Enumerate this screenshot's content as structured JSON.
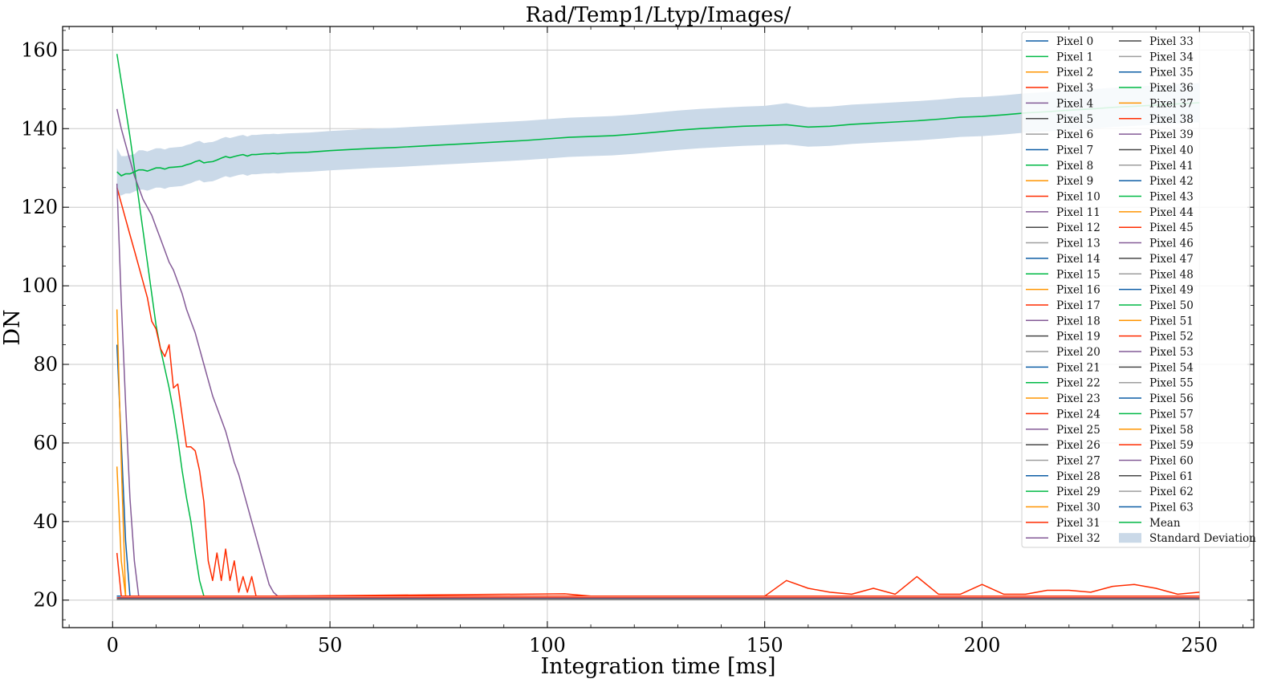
{
  "chart_data": {
    "type": "line",
    "title": "Rad/Temp1/Ltyp/Images/",
    "xlabel": "Integration time [ms]",
    "ylabel": "DN",
    "xlim": [
      -11.5,
      262.5
    ],
    "ylim": [
      13,
      166
    ],
    "xticks": [
      0,
      50,
      100,
      150,
      200,
      250
    ],
    "xtick_labels": [
      "0",
      "50",
      "100",
      "150",
      "200",
      "250"
    ],
    "yticks": [
      20,
      40,
      60,
      80,
      100,
      120,
      140,
      160
    ],
    "ytick_labels": [
      "20",
      "40",
      "60",
      "80",
      "100",
      "120",
      "140",
      "160"
    ],
    "grid": true,
    "legend_position": "top-right",
    "colors": {
      "palette": [
        "#0C5DA5",
        "#00B945",
        "#FF9500",
        "#FF2C00",
        "#845B97",
        "#474747",
        "#9E9E9E"
      ],
      "std_fill": "#CAD9E8",
      "mean": "#00B945"
    },
    "x": [
      1,
      2,
      3,
      4,
      5,
      6,
      7,
      8,
      9,
      10,
      11,
      12,
      13,
      14,
      15,
      16,
      17,
      18,
      19,
      20,
      21,
      22,
      23,
      24,
      25,
      26,
      27,
      28,
      29,
      30,
      31,
      32,
      33,
      34,
      35,
      36,
      37,
      38,
      39,
      40,
      45,
      50,
      55,
      60,
      65,
      70,
      75,
      80,
      85,
      90,
      95,
      100,
      105,
      110,
      115,
      120,
      125,
      130,
      135,
      140,
      145,
      150,
      155,
      160,
      165,
      170,
      175,
      180,
      185,
      190,
      195,
      200,
      205,
      210,
      215,
      220,
      225,
      230,
      235,
      240,
      245,
      250
    ],
    "mean": [
      129,
      128,
      128.5,
      128.5,
      129,
      129.5,
      129.5,
      129.2,
      129.6,
      130,
      130,
      129.7,
      130.1,
      130.2,
      130.3,
      130.4,
      130.8,
      131.1,
      131.6,
      131.9,
      131.3,
      131.5,
      131.6,
      132,
      132.5,
      132.9,
      132.6,
      132.9,
      133.2,
      133.4,
      133,
      133.4,
      133.4,
      133.5,
      133.6,
      133.6,
      133.7,
      133.6,
      133.7,
      133.8,
      134,
      134.4,
      134.7,
      135,
      135.2,
      135.5,
      135.8,
      136.1,
      136.4,
      136.7,
      137,
      137.4,
      137.8,
      138,
      138.2,
      138.6,
      139.1,
      139.6,
      140,
      140.3,
      140.6,
      140.8,
      141,
      140.4,
      140.6,
      141.1,
      141.4,
      141.7,
      142,
      142.4,
      142.9,
      143.1,
      143.5,
      144,
      144.3,
      144.7,
      145,
      145.4,
      145.7,
      146,
      146.3,
      146.6
    ],
    "std_upper": [
      135,
      133,
      133,
      133.3,
      133.5,
      134.5,
      134.5,
      134.2,
      134.6,
      135,
      135,
      134.7,
      135.1,
      135.2,
      135.3,
      135.4,
      135.8,
      136.1,
      136.6,
      136.9,
      136.3,
      136.5,
      136.6,
      137,
      137.5,
      137.9,
      137.6,
      137.9,
      138.2,
      138.4,
      138,
      138.4,
      138.4,
      138.5,
      138.6,
      138.6,
      138.7,
      138.6,
      138.7,
      138.8,
      139,
      139.4,
      139.7,
      140,
      140.2,
      140.5,
      140.8,
      141.1,
      141.4,
      141.7,
      142,
      142.4,
      142.8,
      143,
      143.2,
      143.6,
      144.1,
      144.6,
      145,
      145.3,
      145.6,
      145.8,
      146.5,
      145.4,
      145.6,
      146.1,
      146.4,
      146.7,
      147,
      147.4,
      147.9,
      148.1,
      148.5,
      149,
      149.3,
      149.7,
      150,
      150.4,
      150.7,
      151,
      151.3,
      151.6
    ],
    "std_lower": [
      123,
      123,
      123.5,
      123.5,
      124,
      124.5,
      124.5,
      124.2,
      124.6,
      125,
      125,
      124.7,
      125.1,
      125.2,
      125.3,
      125.4,
      125.8,
      126.1,
      126.6,
      126.9,
      126.3,
      126.5,
      126.6,
      127,
      127.5,
      127.9,
      127.6,
      127.9,
      128.2,
      128.4,
      128,
      128.4,
      128.4,
      128.5,
      128.6,
      128.6,
      128.7,
      128.6,
      128.7,
      128.8,
      129,
      129.4,
      129.7,
      130,
      130.2,
      130.5,
      130.8,
      131.1,
      131.4,
      131.7,
      132,
      132.4,
      132.8,
      133,
      133.2,
      133.6,
      134.1,
      134.6,
      135,
      135.3,
      135.6,
      135.8,
      136,
      135.4,
      135.6,
      136.1,
      136.4,
      136.7,
      137,
      137.4,
      137.9,
      138.1,
      138.5,
      139,
      139.3,
      139.7,
      140,
      140.4,
      140.7,
      141,
      141.3,
      141.6
    ],
    "pixel_baselines": [
      21,
      20.2,
      20.4,
      20.6,
      20.5,
      20.3,
      20.1,
      21,
      20.2,
      20.4,
      20.6,
      20.5,
      20.3,
      20.1,
      21,
      20.2,
      20.4,
      20.6,
      20.5,
      20.3,
      20.1,
      21,
      20.2,
      20.4,
      20.6,
      20.5,
      20.3,
      20.1,
      21,
      20.2,
      20.4,
      20.6,
      20.5,
      20.3,
      20.1,
      21,
      20.2,
      20.4,
      20.6,
      20.5,
      20.3,
      20.1,
      21,
      20.2,
      20.4,
      20.6,
      20.5,
      20.3,
      20.1,
      21,
      20.2,
      20.4,
      20.6,
      20.5,
      20.3,
      20.1,
      21,
      20.2,
      20.4,
      20.6,
      20.5,
      20.3,
      20.1,
      21
    ],
    "highlight_series": [
      {
        "pixel": 1,
        "x": [
          1,
          2,
          3,
          4,
          5,
          6,
          7,
          8,
          9,
          10,
          11,
          12,
          13,
          14,
          15,
          16,
          17,
          18,
          19,
          20,
          21,
          22,
          23,
          250
        ],
        "values": [
          159,
          152,
          145,
          138,
          130,
          122,
          114,
          106,
          98,
          90,
          84,
          79,
          74,
          68,
          61,
          53,
          46,
          40,
          32,
          25,
          21,
          21,
          21,
          21
        ]
      },
      {
        "pixel": 3,
        "x": [
          1,
          2,
          3,
          4,
          5,
          6,
          7,
          8,
          9,
          10,
          11,
          12,
          13,
          14,
          15,
          16,
          17,
          18,
          19,
          20,
          21,
          22,
          23,
          24,
          25,
          26,
          27,
          28,
          29,
          30,
          31,
          32,
          33,
          34,
          35,
          36,
          104,
          110,
          120,
          130,
          150,
          155,
          160,
          165,
          170,
          175,
          180,
          185,
          190,
          195,
          200,
          205,
          210,
          215,
          220,
          225,
          230,
          235,
          240,
          245,
          250
        ],
        "values": [
          125,
          121,
          117,
          113,
          109,
          105,
          101,
          97,
          91,
          89,
          84,
          82,
          85,
          74,
          75,
          67,
          59,
          59,
          58,
          53,
          45,
          30,
          25,
          32,
          25,
          33,
          25,
          30,
          22,
          26,
          22,
          26,
          21,
          21,
          21,
          21,
          21.6,
          21,
          21,
          21,
          21,
          25,
          23,
          22,
          21.5,
          23,
          21.5,
          26,
          21.5,
          21.5,
          24,
          21.5,
          21.5,
          22.5,
          22.5,
          22,
          23.5,
          24,
          23,
          21.5,
          22
        ],
        "pre_tail": true
      },
      {
        "pixel": 4,
        "x": [
          1,
          2,
          3,
          4,
          5,
          6,
          7,
          8,
          9,
          10,
          11,
          12,
          13,
          14,
          15,
          16,
          17,
          18,
          19,
          20,
          21,
          22,
          23,
          24,
          25,
          26,
          27,
          28,
          29,
          30,
          31,
          32,
          33,
          34,
          35,
          36,
          37,
          38,
          39,
          40,
          250
        ],
        "values": [
          145,
          140,
          136,
          132,
          128,
          125,
          122,
          120,
          118,
          115,
          112,
          109,
          106,
          104,
          101,
          98,
          94,
          91,
          88,
          84,
          80,
          76,
          72,
          69,
          66,
          63,
          59,
          55,
          52,
          48,
          44,
          40,
          36,
          32,
          28,
          24,
          22,
          21,
          21,
          21,
          21
        ]
      },
      {
        "pixel": 0,
        "x": [
          1,
          2,
          3,
          4,
          250
        ],
        "values": [
          85,
          60,
          35,
          21,
          21
        ]
      },
      {
        "pixel": 2,
        "x": [
          1,
          2,
          3,
          250
        ],
        "values": [
          94,
          55,
          21,
          21
        ]
      },
      {
        "pixel": 9,
        "x": [
          1,
          2,
          3,
          250
        ],
        "values": [
          54,
          30,
          21,
          21
        ]
      },
      {
        "pixel": 11,
        "x": [
          1,
          2,
          3,
          4,
          5,
          6,
          250
        ],
        "values": [
          126,
          96,
          70,
          46,
          30,
          21,
          21
        ]
      },
      {
        "pixel": 10,
        "x": [
          1,
          2,
          250
        ],
        "values": [
          32,
          21,
          21
        ]
      }
    ],
    "legend": {
      "series": [
        "Pixel 0",
        "Pixel 1",
        "Pixel 2",
        "Pixel 3",
        "Pixel 4",
        "Pixel 5",
        "Pixel 6",
        "Pixel 7",
        "Pixel 8",
        "Pixel 9",
        "Pixel 10",
        "Pixel 11",
        "Pixel 12",
        "Pixel 13",
        "Pixel 14",
        "Pixel 15",
        "Pixel 16",
        "Pixel 17",
        "Pixel 18",
        "Pixel 19",
        "Pixel 20",
        "Pixel 21",
        "Pixel 22",
        "Pixel 23",
        "Pixel 24",
        "Pixel 25",
        "Pixel 26",
        "Pixel 27",
        "Pixel 28",
        "Pixel 29",
        "Pixel 30",
        "Pixel 31",
        "Pixel 32",
        "Pixel 33",
        "Pixel 34",
        "Pixel 35",
        "Pixel 36",
        "Pixel 37",
        "Pixel 38",
        "Pixel 39",
        "Pixel 40",
        "Pixel 41",
        "Pixel 42",
        "Pixel 43",
        "Pixel 44",
        "Pixel 45",
        "Pixel 46",
        "Pixel 47",
        "Pixel 48",
        "Pixel 49",
        "Pixel 50",
        "Pixel 51",
        "Pixel 52",
        "Pixel 53",
        "Pixel 54",
        "Pixel 55",
        "Pixel 56",
        "Pixel 57",
        "Pixel 58",
        "Pixel 59",
        "Pixel 60",
        "Pixel 61",
        "Pixel 62",
        "Pixel 63"
      ],
      "mean_label": "Mean",
      "std_label": "Standard Deviation"
    }
  }
}
